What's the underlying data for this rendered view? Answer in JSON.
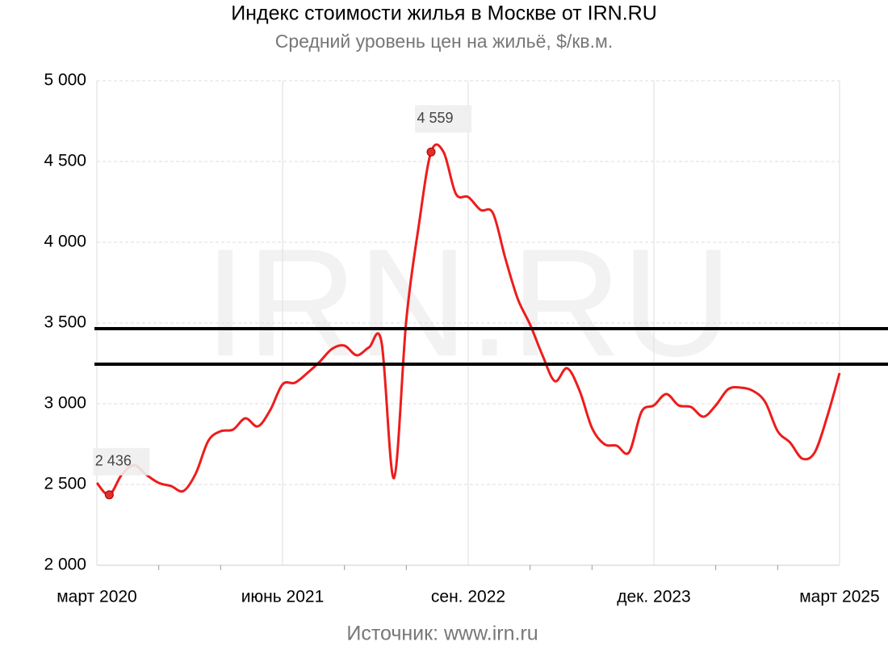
{
  "chart_data": {
    "type": "line",
    "title": "Индекс стоимости жилья в Москве от IRN.RU",
    "subtitle": "Средний уровень цен на жильё, $/кв.м.",
    "watermark": "IRN.RU",
    "source": "Источник: www.irn.ru",
    "categories": [
      "март 2020",
      null,
      null,
      null,
      null,
      null,
      null,
      null,
      null,
      null,
      null,
      null,
      null,
      null,
      null,
      "июнь 2021",
      null,
      null,
      null,
      null,
      null,
      null,
      null,
      null,
      null,
      null,
      null,
      null,
      null,
      null,
      "сен. 2022",
      null,
      null,
      null,
      null,
      null,
      null,
      null,
      null,
      null,
      null,
      null,
      null,
      null,
      null,
      "дек. 2023",
      null,
      null,
      null,
      null,
      null,
      null,
      null,
      null,
      null,
      null,
      null,
      null,
      null,
      null,
      "март 2025"
    ],
    "series": [
      {
        "color": "#ee1c1c",
        "values": [
          2510,
          2436,
          2560,
          2620,
          2560,
          2510,
          2490,
          2460,
          2570,
          2770,
          2830,
          2840,
          2910,
          2860,
          2960,
          3120,
          3130,
          3190,
          3260,
          3340,
          3360,
          3300,
          3350,
          3380,
          2540,
          3520,
          4100,
          4559,
          4560,
          4300,
          4280,
          4200,
          4180,
          3900,
          3650,
          3490,
          3300,
          3140,
          3220,
          3080,
          2850,
          2750,
          2740,
          2700,
          2950,
          2990,
          3060,
          2990,
          2980,
          2920,
          2990,
          3090,
          3100,
          3080,
          3010,
          2830,
          2760,
          2660,
          2700,
          2920,
          3190
        ],
        "value_labels": [
          null,
          "2 436",
          null,
          null,
          null,
          null,
          null,
          null,
          null,
          null,
          null,
          null,
          null,
          null,
          null,
          null,
          null,
          null,
          null,
          null,
          null,
          null,
          null,
          null,
          null,
          null,
          null,
          "4 559",
          null,
          null,
          null,
          null,
          null,
          null,
          null,
          null,
          null,
          null,
          null,
          null,
          null,
          null,
          null,
          null,
          null,
          null,
          null,
          null,
          null,
          null,
          null,
          null,
          null,
          null,
          null,
          null,
          null,
          null,
          null,
          null,
          null
        ]
      }
    ],
    "reference_lines": [
      3465,
      3245
    ],
    "reference_color": "#000000",
    "ylim": [
      2000,
      5000
    ],
    "yticks": [
      {
        "value": 2000,
        "label": "2 000"
      },
      {
        "value": 2500,
        "label": "2 500"
      },
      {
        "value": 3000,
        "label": "3 000"
      },
      {
        "value": 3500,
        "label": "3 500"
      },
      {
        "value": 4000,
        "label": "4 000"
      },
      {
        "value": 4500,
        "label": "4 500"
      },
      {
        "value": 5000,
        "label": "5 000"
      }
    ],
    "grid": true
  }
}
